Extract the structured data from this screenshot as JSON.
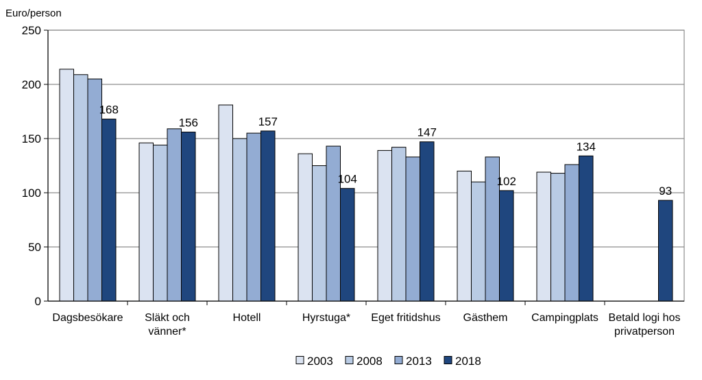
{
  "chart_data": {
    "type": "bar",
    "ylabel": "Euro/person",
    "ylim": [
      0,
      250
    ],
    "yticks": [
      0,
      50,
      100,
      150,
      200,
      250
    ],
    "grid": true,
    "legend_position": "bottom",
    "categories": [
      [
        "Dagsbesökare"
      ],
      [
        "Släkt och",
        "vänner*"
      ],
      [
        "Hotell"
      ],
      [
        "Hyrstuga*"
      ],
      [
        "Eget fritidshus"
      ],
      [
        "Gästhem"
      ],
      [
        "Campingplats"
      ],
      [
        "Betald logi hos",
        "privatperson"
      ]
    ],
    "series": [
      {
        "name": "2003",
        "color": "#dbe3f1",
        "values": [
          214,
          146,
          181,
          136,
          139,
          120,
          119,
          null
        ]
      },
      {
        "name": "2008",
        "color": "#b9cbe4",
        "values": [
          209,
          144,
          150,
          125,
          142,
          110,
          118,
          null
        ]
      },
      {
        "name": "2013",
        "color": "#93acd3",
        "values": [
          205,
          159,
          155,
          143,
          133,
          133,
          126,
          null
        ]
      },
      {
        "name": "2018",
        "color": "#1f467e",
        "values": [
          168,
          156,
          157,
          104,
          147,
          102,
          134,
          93
        ]
      }
    ],
    "data_labels": {
      "series": "2018",
      "values": [
        168,
        156,
        157,
        104,
        147,
        102,
        134,
        93
      ]
    }
  }
}
